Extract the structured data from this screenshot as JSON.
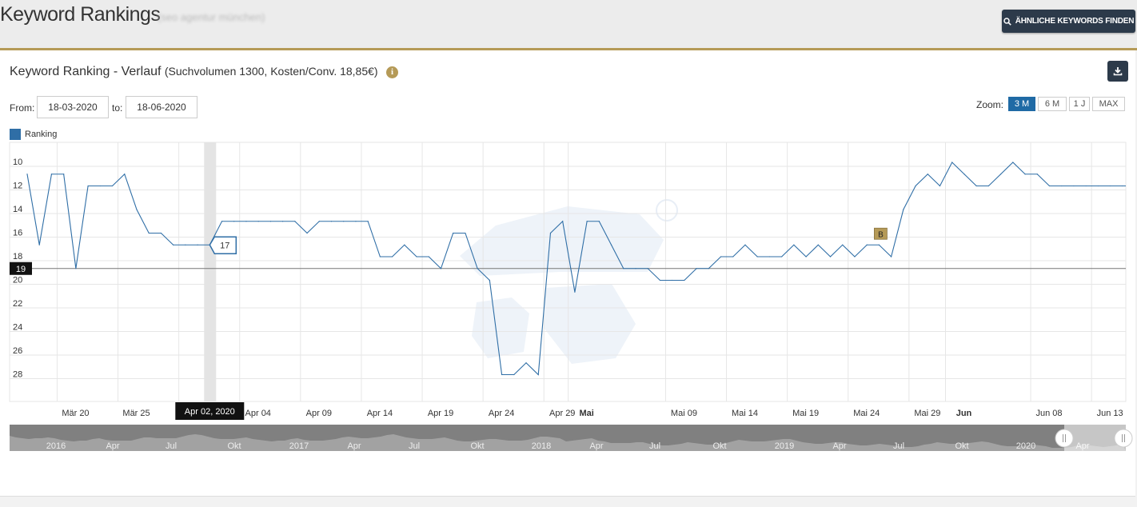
{
  "header": {
    "title": "Keyword Rankings",
    "subtitle": "(seo agentur münchen)",
    "similar_button_label": "ÄHNLICHE KEYWORDS FINDEN",
    "search_icon": "search-icon"
  },
  "panel": {
    "title": "Keyword Ranking - Verlauf",
    "subtitle": "(Suchvolumen 1300, Kosten/Conv. 18,85€)",
    "info_icon_text": "i",
    "download_icon": "download-icon",
    "from_label": "From:",
    "from_value": "18-03-2020",
    "to_label": "to:",
    "to_value": "18-06-2020",
    "zoom_label": "Zoom:",
    "zoom_options": [
      "3 M",
      "6 M",
      "1 J",
      "MAX"
    ],
    "zoom_selected": "3 M"
  },
  "colors": {
    "series": "#2f6ea6",
    "accent_gold": "#b59a57",
    "dark_button": "#2c3a4a",
    "zoom_active": "#1f6aa5"
  },
  "chart_data": {
    "type": "line",
    "legend": "Ranking",
    "y_reversed": true,
    "ylim": [
      30,
      8
    ],
    "yticks": [
      10,
      12,
      14,
      16,
      18,
      20,
      22,
      24,
      26,
      28
    ],
    "grid": true,
    "x_start": "2020-03-18",
    "x_ticks": [
      {
        "label": "Mär 20",
        "date": "2020-03-20",
        "bold": false
      },
      {
        "label": "Mär 25",
        "date": "2020-03-25",
        "bold": false
      },
      {
        "label": "Mär 30",
        "date": "2020-03-30",
        "bold": false
      },
      {
        "label": "Apr 04",
        "date": "2020-04-04",
        "bold": false
      },
      {
        "label": "Apr 09",
        "date": "2020-04-09",
        "bold": false
      },
      {
        "label": "Apr 14",
        "date": "2020-04-14",
        "bold": false
      },
      {
        "label": "Apr 19",
        "date": "2020-04-19",
        "bold": false
      },
      {
        "label": "Apr 24",
        "date": "2020-04-24",
        "bold": false
      },
      {
        "label": "Apr 29",
        "date": "2020-04-29",
        "bold": false
      },
      {
        "label": "Mai",
        "date": "2020-05-01",
        "bold": true
      },
      {
        "label": "Mai 09",
        "date": "2020-05-09",
        "bold": false
      },
      {
        "label": "Mai 14",
        "date": "2020-05-14",
        "bold": false
      },
      {
        "label": "Mai 19",
        "date": "2020-05-19",
        "bold": false
      },
      {
        "label": "Mai 24",
        "date": "2020-05-24",
        "bold": false
      },
      {
        "label": "Mai 29",
        "date": "2020-05-29",
        "bold": false
      },
      {
        "label": "Jun",
        "date": "2020-06-01",
        "bold": true
      },
      {
        "label": "Jun 08",
        "date": "2020-06-08",
        "bold": false
      },
      {
        "label": "Jun 13",
        "date": "2020-06-13",
        "bold": false
      }
    ],
    "series": [
      {
        "dates": [
          "2020-03-18",
          "2020-03-19",
          "2020-03-20",
          "2020-03-21",
          "2020-03-22",
          "2020-03-23",
          "2020-03-24",
          "2020-03-25",
          "2020-03-26",
          "2020-03-27",
          "2020-03-28",
          "2020-03-29",
          "2020-03-30",
          "2020-03-31",
          "2020-04-01",
          "2020-04-02",
          "2020-04-03",
          "2020-04-04",
          "2020-04-05",
          "2020-04-06",
          "2020-04-07",
          "2020-04-08",
          "2020-04-09",
          "2020-04-10",
          "2020-04-11",
          "2020-04-12",
          "2020-04-13",
          "2020-04-14",
          "2020-04-15",
          "2020-04-16",
          "2020-04-17",
          "2020-04-18",
          "2020-04-19",
          "2020-04-20",
          "2020-04-21",
          "2020-04-22",
          "2020-04-23",
          "2020-04-24",
          "2020-04-25",
          "2020-04-26",
          "2020-04-27",
          "2020-04-28",
          "2020-04-29",
          "2020-04-30",
          "2020-05-01",
          "2020-05-02",
          "2020-05-03",
          "2020-05-04",
          "2020-05-05",
          "2020-05-06",
          "2020-05-07",
          "2020-05-08",
          "2020-05-09",
          "2020-05-10",
          "2020-05-11",
          "2020-05-12",
          "2020-05-13",
          "2020-05-14",
          "2020-05-15",
          "2020-05-16",
          "2020-05-17",
          "2020-05-18",
          "2020-05-19",
          "2020-05-20",
          "2020-05-21",
          "2020-05-22",
          "2020-05-23",
          "2020-05-24",
          "2020-05-25",
          "2020-05-26",
          "2020-05-27",
          "2020-05-28",
          "2020-05-29",
          "2020-05-30",
          "2020-05-31",
          "2020-06-01",
          "2020-06-02",
          "2020-06-03",
          "2020-06-04",
          "2020-06-05",
          "2020-06-06",
          "2020-06-07",
          "2020-06-08",
          "2020-06-09",
          "2020-06-10",
          "2020-06-11",
          "2020-06-12",
          "2020-06-13",
          "2020-06-14",
          "2020-06-15",
          "2020-06-16",
          "2020-06-17",
          "2020-06-18"
        ],
        "values": [
          11,
          17,
          11,
          11,
          19,
          12,
          12,
          12,
          11,
          14,
          16,
          16,
          17,
          17,
          17,
          17,
          15,
          15,
          15,
          15,
          15,
          15,
          15,
          16,
          15,
          15,
          15,
          15,
          15,
          18,
          18,
          17,
          18,
          18,
          19,
          16,
          16,
          19,
          20,
          28,
          28,
          27,
          28,
          16,
          15,
          21,
          15,
          15,
          17,
          19,
          19,
          19,
          20,
          20,
          20,
          19,
          19,
          18,
          18,
          17,
          18,
          18,
          18,
          17,
          18,
          17,
          18,
          17,
          18,
          17,
          17,
          18,
          14,
          12,
          11,
          12,
          10,
          11,
          12,
          12,
          11,
          10,
          11,
          11,
          12,
          12,
          12,
          12,
          12,
          12,
          12,
          12,
          12
        ]
      }
    ],
    "annotations": [
      {
        "type": "tooltip-value",
        "date": "2020-04-02",
        "value": 17,
        "text": "17"
      },
      {
        "type": "crosshair-label",
        "date": "2020-04-02",
        "text": "Apr 02, 2020"
      },
      {
        "type": "y-plotline",
        "value": 19,
        "text": "19"
      },
      {
        "type": "flag",
        "date": "2020-05-27",
        "value": 17,
        "text": "B"
      }
    ],
    "navigator": {
      "labels": [
        "2016",
        "Apr",
        "Jul",
        "Okt",
        "2017",
        "Apr",
        "Jul",
        "Okt",
        "2018",
        "Apr",
        "Jul",
        "Okt",
        "2019",
        "Apr",
        "Jul",
        "Okt",
        "2020",
        "Apr"
      ]
    }
  }
}
